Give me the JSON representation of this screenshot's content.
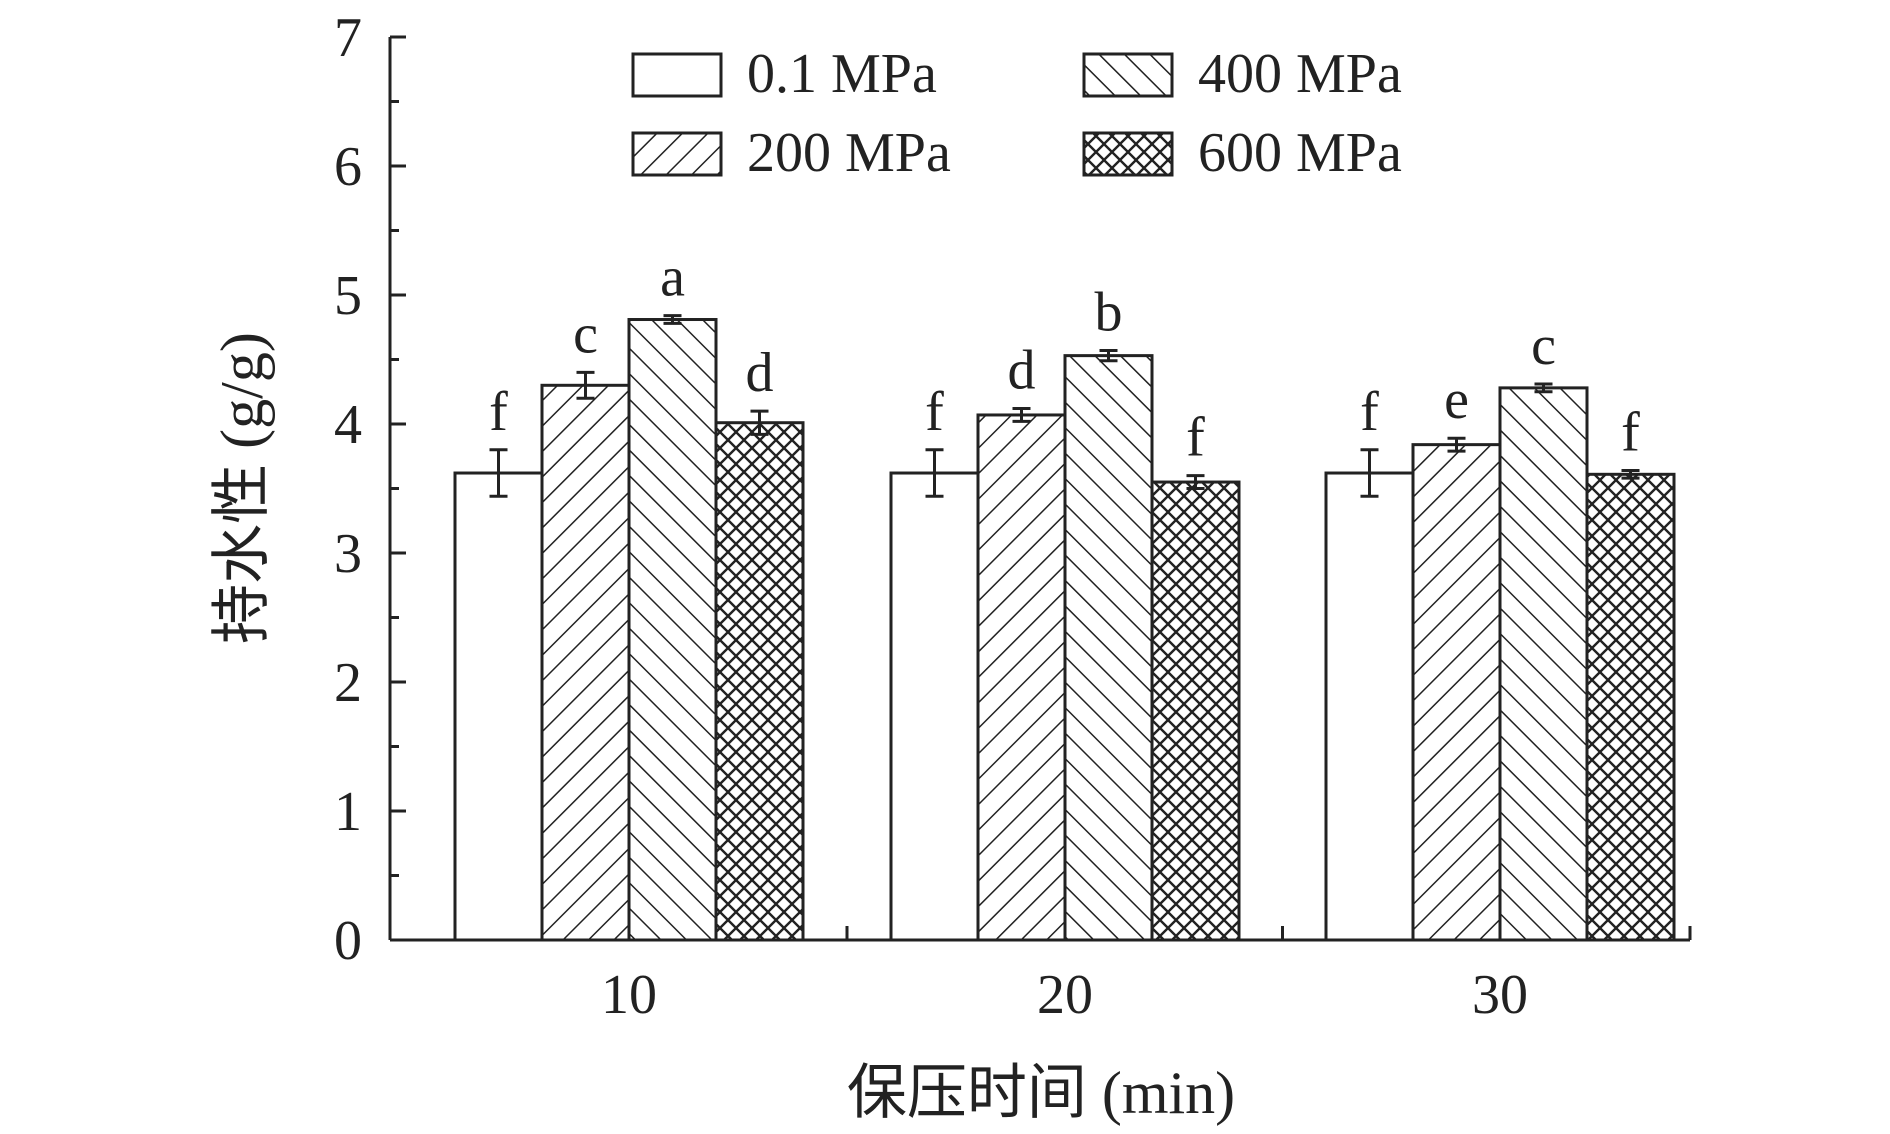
{
  "chart_data": {
    "type": "bar",
    "title": "",
    "xlabel": "保压时间 (min)",
    "ylabel": "持水性 (g/g)",
    "ylim": [
      0,
      7
    ],
    "yticks": [
      "0",
      "1",
      "2",
      "3",
      "4",
      "5",
      "6",
      "7"
    ],
    "categories": [
      "10",
      "20",
      "30"
    ],
    "series": [
      {
        "name": "0.1 MPa",
        "pattern": "none",
        "values": [
          3.62,
          3.62,
          3.62
        ],
        "errors": [
          0.18,
          0.18,
          0.18
        ],
        "labels": [
          "f",
          "f",
          "f"
        ]
      },
      {
        "name": "200 MPa",
        "pattern": "diag-up",
        "values": [
          4.3,
          4.07,
          3.84
        ],
        "errors": [
          0.1,
          0.05,
          0.05
        ],
        "labels": [
          "c",
          "d",
          "e"
        ]
      },
      {
        "name": "400 MPa",
        "pattern": "diag-down",
        "values": [
          4.81,
          4.53,
          4.28
        ],
        "errors": [
          0.03,
          0.04,
          0.03
        ],
        "labels": [
          "a",
          "b",
          "c"
        ]
      },
      {
        "name": "600 MPa",
        "pattern": "crosshatch",
        "values": [
          4.01,
          3.55,
          3.61
        ],
        "errors": [
          0.09,
          0.05,
          0.03
        ],
        "labels": [
          "d",
          "f",
          "f"
        ]
      }
    ],
    "legend_placement": "top-center",
    "grid": false,
    "colors": {
      "stroke": "#222222",
      "fill": "#ffffff"
    }
  }
}
